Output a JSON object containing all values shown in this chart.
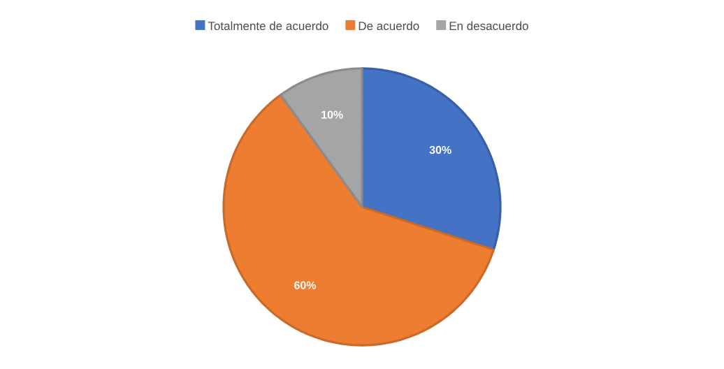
{
  "chart_data": {
    "type": "pie",
    "categories": [
      "Totalmente de acuerdo",
      "De acuerdo",
      "En desacuerdo"
    ],
    "values": [
      30,
      60,
      10
    ],
    "colors": [
      "#4472c4",
      "#ed7d31",
      "#a5a5a5"
    ],
    "value_labels": [
      "30%",
      "60%",
      "10%"
    ],
    "legend": "top"
  }
}
